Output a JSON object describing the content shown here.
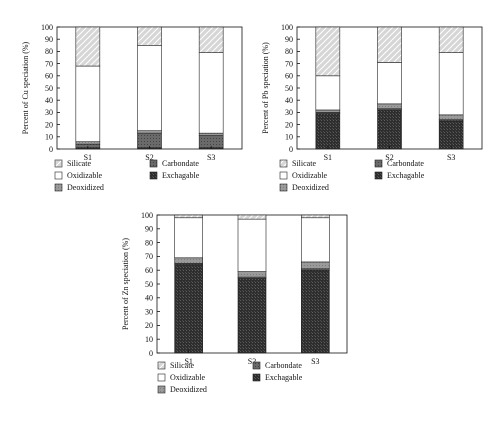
{
  "legend": [
    {
      "key": "silicate",
      "label": "Silicate"
    },
    {
      "key": "carbondate",
      "label": "Carbondate"
    },
    {
      "key": "oxidizable",
      "label": "Oxidizable"
    },
    {
      "key": "exchagable",
      "label": "Exchagable"
    },
    {
      "key": "deoxidized",
      "label": "Deoxidized"
    }
  ],
  "chart_data": [
    {
      "type": "bar",
      "stacked": true,
      "ylabel": "Percent of Cu speciation (%)",
      "ylim": [
        0,
        100
      ],
      "yticks": [
        0,
        10,
        20,
        30,
        40,
        50,
        60,
        70,
        80,
        90,
        100
      ],
      "categories": [
        "S1",
        "S2",
        "S3"
      ],
      "series": [
        {
          "key": "exchagable",
          "values": [
            1,
            1,
            1
          ]
        },
        {
          "key": "carbondate",
          "values": [
            3,
            12,
            10
          ]
        },
        {
          "key": "deoxidized",
          "values": [
            2,
            2,
            2
          ]
        },
        {
          "key": "oxidizable",
          "values": [
            62,
            70,
            66
          ]
        },
        {
          "key": "silicate",
          "values": [
            32,
            15,
            21
          ]
        }
      ]
    },
    {
      "type": "bar",
      "stacked": true,
      "ylabel": "Percent of Pb speciation (%)",
      "ylim": [
        0,
        100
      ],
      "yticks": [
        0,
        10,
        20,
        30,
        40,
        50,
        60,
        70,
        80,
        90,
        100
      ],
      "categories": [
        "S1",
        "S2",
        "S3"
      ],
      "series": [
        {
          "key": "exchagable",
          "values": [
            29,
            32,
            23
          ]
        },
        {
          "key": "carbondate",
          "values": [
            1,
            1,
            1
          ]
        },
        {
          "key": "deoxidized",
          "values": [
            2,
            4,
            4
          ]
        },
        {
          "key": "oxidizable",
          "values": [
            28,
            34,
            51
          ]
        },
        {
          "key": "silicate",
          "values": [
            40,
            29,
            21
          ]
        }
      ]
    },
    {
      "type": "bar",
      "stacked": true,
      "ylabel": "Percent of Zn speciation (%)",
      "ylim": [
        0,
        100
      ],
      "yticks": [
        0,
        10,
        20,
        30,
        40,
        50,
        60,
        70,
        80,
        90,
        100
      ],
      "categories": [
        "S1",
        "S2",
        "S3"
      ],
      "series": [
        {
          "key": "exchagable",
          "values": [
            64,
            54,
            60
          ]
        },
        {
          "key": "carbondate",
          "values": [
            1,
            1,
            1
          ]
        },
        {
          "key": "deoxidized",
          "values": [
            4,
            4,
            5
          ]
        },
        {
          "key": "oxidizable",
          "values": [
            29,
            38,
            32
          ]
        },
        {
          "key": "silicate",
          "values": [
            2,
            3,
            2
          ]
        }
      ]
    }
  ],
  "colors": {
    "silicate": "#d6d6d6",
    "carbondate": "#6a6a6a",
    "oxidizable": "#ffffff",
    "exchagable": "#2e2e2e",
    "deoxidized": "#9a9a9a",
    "axis": "#111111"
  }
}
